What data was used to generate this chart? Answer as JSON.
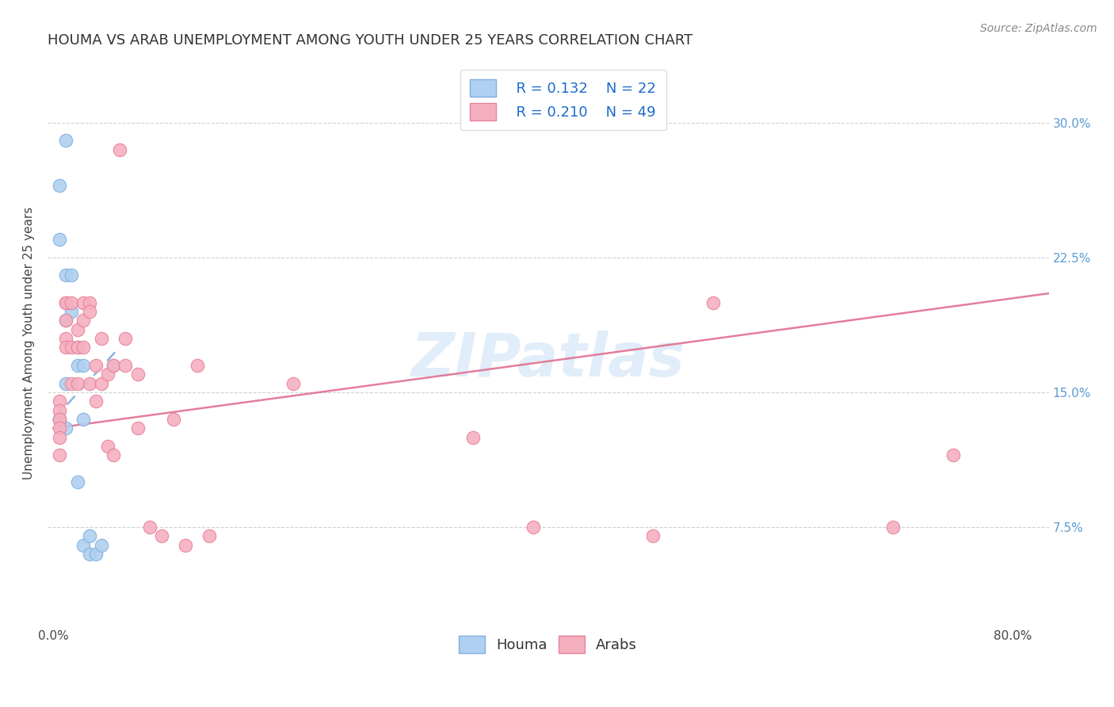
{
  "title": "HOUMA VS ARAB UNEMPLOYMENT AMONG YOUTH UNDER 25 YEARS CORRELATION CHART",
  "source": "Source: ZipAtlas.com",
  "ylabel": "Unemployment Among Youth under 25 years",
  "ytick_values": [
    0.075,
    0.15,
    0.225,
    0.3
  ],
  "ytick_labels": [
    "7.5%",
    "15.0%",
    "22.5%",
    "30.0%"
  ],
  "xtick_values": [
    0.0,
    0.1,
    0.2,
    0.3,
    0.4,
    0.5,
    0.6,
    0.7,
    0.8
  ],
  "xlim": [
    -0.005,
    0.83
  ],
  "ylim": [
    0.02,
    0.335
  ],
  "legend_r1": "R = 0.132",
  "legend_n1": "N = 22",
  "legend_r2": "R = 0.210",
  "legend_n2": "N = 49",
  "houma_fill": "#afd0f0",
  "houma_edge": "#7fb0e0",
  "arab_fill": "#f5b0c0",
  "arab_edge": "#e88098",
  "trend_houma_color": "#6090d0",
  "trend_arab_color": "#e07090",
  "watermark": "ZIPatlas",
  "houma_x": [
    0.005,
    0.005,
    0.005,
    0.005,
    0.01,
    0.01,
    0.01,
    0.01,
    0.01,
    0.015,
    0.015,
    0.02,
    0.02,
    0.02,
    0.025,
    0.025,
    0.025,
    0.03,
    0.03,
    0.035,
    0.04,
    0.05
  ],
  "houma_y": [
    0.265,
    0.235,
    0.135,
    0.135,
    0.29,
    0.215,
    0.19,
    0.155,
    0.13,
    0.215,
    0.195,
    0.175,
    0.165,
    0.1,
    0.165,
    0.135,
    0.065,
    0.07,
    0.06,
    0.06,
    0.065,
    0.165
  ],
  "arab_x": [
    0.005,
    0.005,
    0.005,
    0.005,
    0.005,
    0.005,
    0.01,
    0.01,
    0.01,
    0.01,
    0.01,
    0.015,
    0.015,
    0.015,
    0.02,
    0.02,
    0.02,
    0.025,
    0.025,
    0.025,
    0.03,
    0.03,
    0.03,
    0.035,
    0.035,
    0.04,
    0.04,
    0.045,
    0.045,
    0.05,
    0.05,
    0.055,
    0.06,
    0.06,
    0.07,
    0.07,
    0.08,
    0.09,
    0.1,
    0.11,
    0.12,
    0.13,
    0.2,
    0.35,
    0.4,
    0.5,
    0.55,
    0.7,
    0.75
  ],
  "arab_y": [
    0.145,
    0.14,
    0.135,
    0.13,
    0.125,
    0.115,
    0.2,
    0.2,
    0.19,
    0.18,
    0.175,
    0.2,
    0.175,
    0.155,
    0.185,
    0.175,
    0.155,
    0.2,
    0.19,
    0.175,
    0.2,
    0.195,
    0.155,
    0.165,
    0.145,
    0.18,
    0.155,
    0.16,
    0.12,
    0.165,
    0.115,
    0.285,
    0.18,
    0.165,
    0.16,
    0.13,
    0.075,
    0.07,
    0.135,
    0.065,
    0.165,
    0.07,
    0.155,
    0.125,
    0.075,
    0.07,
    0.2,
    0.075,
    0.115
  ],
  "houma_line_x": [
    0.0,
    0.055
  ],
  "houma_line_y": [
    0.135,
    0.175
  ],
  "arab_line_x": [
    0.0,
    0.83
  ],
  "arab_line_y": [
    0.13,
    0.205
  ],
  "background_color": "#ffffff",
  "grid_color": "#cccccc",
  "title_fontsize": 13,
  "axis_label_fontsize": 11,
  "tick_fontsize": 11,
  "legend_fontsize": 13,
  "source_fontsize": 10
}
